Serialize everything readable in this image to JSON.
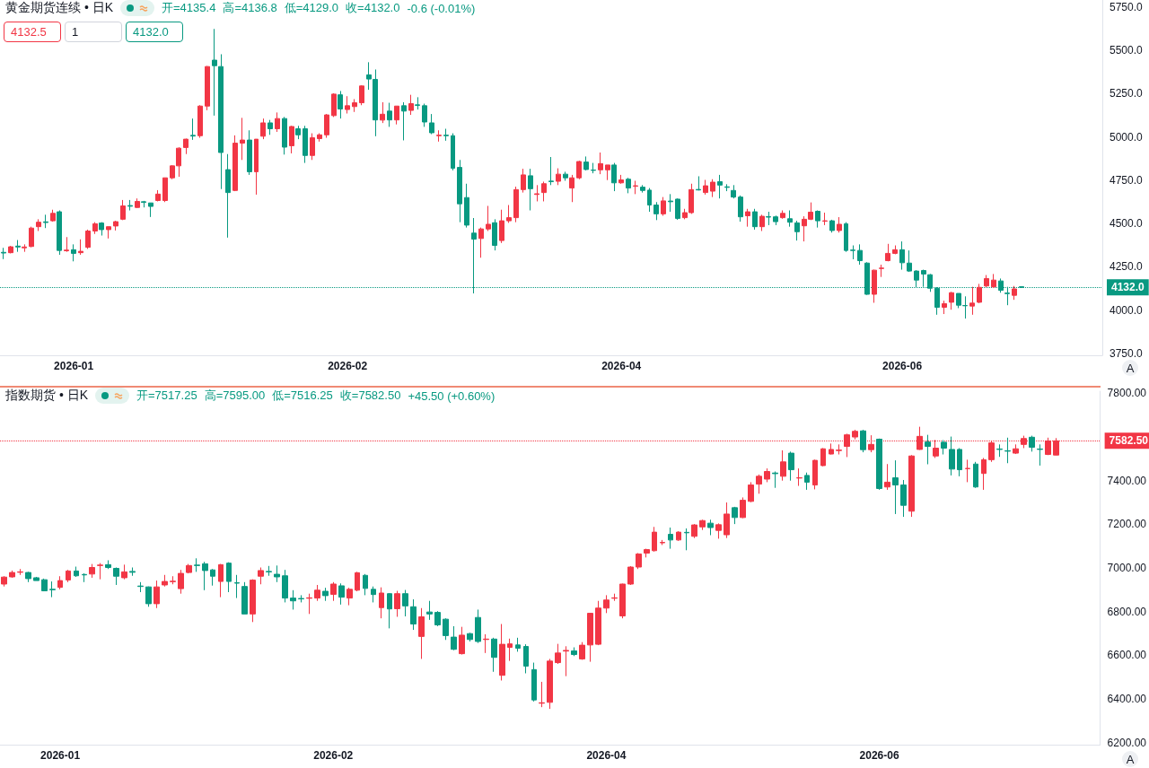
{
  "chart_data": [
    {
      "type": "candlestick",
      "title": "黄金期货连续 • 日K",
      "annotations": [
        "开=4135.4",
        "高=4136.8",
        "低=4129.0",
        "收=4132.0",
        "-0.6 (-0.01%)",
        "4132.5",
        "1",
        "4132.0",
        "A"
      ],
      "categories": [
        null,
        null,
        null,
        null,
        null,
        null,
        null,
        null,
        null,
        null,
        "2026-01",
        null,
        null,
        null,
        null,
        null,
        null,
        null,
        null,
        null,
        null,
        null,
        null,
        null,
        null,
        null,
        null,
        null,
        null,
        null,
        null,
        null,
        null,
        null,
        null,
        null,
        null,
        null,
        null,
        null,
        null,
        null,
        null,
        null,
        null,
        null,
        null,
        null,
        null,
        "2026-02",
        null,
        null,
        null,
        null,
        null,
        null,
        null,
        null,
        null,
        null,
        null,
        null,
        null,
        null,
        null,
        null,
        null,
        null,
        null,
        null,
        null,
        null,
        null,
        null,
        null,
        null,
        null,
        null,
        null,
        null,
        null,
        null,
        null,
        null,
        null,
        null,
        null,
        null,
        "2026-04",
        null,
        null,
        null,
        null,
        null,
        null,
        null,
        null,
        null,
        null,
        null,
        null,
        null,
        null,
        null,
        null,
        null,
        null,
        null,
        null,
        null,
        null,
        null,
        null,
        null,
        null,
        null,
        null,
        null,
        null,
        null,
        null,
        null,
        null,
        null,
        null,
        null,
        null,
        null,
        "2026-06",
        null,
        null,
        null,
        null,
        null,
        null,
        null,
        null,
        null,
        null,
        null,
        null,
        null,
        null,
        null,
        null,
        null,
        null,
        null,
        null,
        null,
        null,
        null,
        null,
        null,
        null,
        null,
        null
      ],
      "ohlc": [
        [
          4334,
          4360,
          4295,
          4330
        ],
        [
          4332,
          4371,
          4328,
          4366
        ],
        [
          4370,
          4405,
          4337,
          4365
        ],
        [
          4360,
          4380,
          4337,
          4365
        ],
        [
          4368,
          4482,
          4363,
          4474
        ],
        [
          4482,
          4525,
          4457,
          4508
        ],
        [
          4510,
          4551,
          4474,
          4506
        ],
        [
          4516,
          4580,
          4511,
          4559
        ],
        [
          4568,
          4576,
          4320,
          4345
        ],
        [
          4343,
          4422,
          4337,
          4347
        ],
        [
          4349,
          4380,
          4282,
          4328
        ],
        [
          4332,
          4409,
          4320,
          4340
        ],
        [
          4363,
          4465,
          4354,
          4457
        ],
        [
          4457,
          4508,
          4440,
          4499
        ],
        [
          4503,
          4508,
          4431,
          4465
        ],
        [
          4465,
          4482,
          4414,
          4482
        ],
        [
          4486,
          4516,
          4460,
          4511
        ],
        [
          4525,
          4636,
          4520,
          4602
        ],
        [
          4604,
          4636,
          4576,
          4600
        ],
        [
          4593,
          4645,
          4590,
          4628
        ],
        [
          4626,
          4631,
          4593,
          4622
        ],
        [
          4619,
          4620,
          4538,
          4599
        ],
        [
          4633,
          4693,
          4628,
          4670
        ],
        [
          4633,
          4764,
          4624,
          4764
        ],
        [
          4764,
          4836,
          4756,
          4833
        ],
        [
          4833,
          4940,
          4770,
          4935
        ],
        [
          4939,
          4990,
          4901,
          4987
        ],
        [
          5009,
          5106,
          4983,
          5005
        ],
        [
          5007,
          5183,
          4995,
          5178
        ],
        [
          5178,
          5409,
          5154,
          5406
        ],
        [
          5443,
          5623,
          5123,
          5411
        ],
        [
          5406,
          5477,
          4699,
          4910
        ],
        [
          4811,
          4901,
          4419,
          4679
        ],
        [
          4691,
          5009,
          4687,
          4964
        ],
        [
          4964,
          5110,
          4867,
          4982
        ],
        [
          4982,
          5038,
          4781,
          4799
        ],
        [
          4799,
          4987,
          4667,
          4987
        ],
        [
          5004,
          5106,
          4987,
          5081
        ],
        [
          5081,
          5098,
          5012,
          5047
        ],
        [
          5047,
          5141,
          5029,
          5106
        ],
        [
          5106,
          5115,
          4898,
          4941
        ],
        [
          4949,
          5064,
          4905,
          5060
        ],
        [
          5047,
          5064,
          4987,
          5012
        ],
        [
          5047,
          5064,
          4850,
          4893
        ],
        [
          4893,
          5021,
          4867,
          4995
        ],
        [
          4990,
          5021,
          4973,
          5012
        ],
        [
          5012,
          5132,
          4995,
          5127
        ],
        [
          5123,
          5252,
          5115,
          5247
        ],
        [
          5243,
          5265,
          5106,
          5161
        ],
        [
          5158,
          5235,
          5135,
          5180
        ],
        [
          5175,
          5218,
          5144,
          5197
        ],
        [
          5197,
          5298,
          5183,
          5294
        ],
        [
          5358,
          5431,
          5272,
          5334
        ],
        [
          5332,
          5389,
          5004,
          5098
        ],
        [
          5097,
          5200,
          5080,
          5131
        ],
        [
          5149,
          5197,
          5058,
          5098
        ],
        [
          5098,
          5178,
          5072,
          5178
        ],
        [
          5180,
          5200,
          4980,
          5149
        ],
        [
          5153,
          5243,
          5127,
          5192
        ],
        [
          5185,
          5229,
          5158,
          5182
        ],
        [
          5180,
          5192,
          5058,
          5086
        ],
        [
          5081,
          5132,
          5016,
          5024
        ],
        [
          5007,
          5038,
          4973,
          5010
        ],
        [
          5010,
          5047,
          4978,
          5007
        ],
        [
          5007,
          5021,
          4807,
          4819
        ],
        [
          4824,
          4867,
          4508,
          4614
        ],
        [
          4650,
          4730,
          4477,
          4491
        ],
        [
          4445,
          4532,
          4097,
          4410
        ],
        [
          4414,
          4477,
          4303,
          4469
        ],
        [
          4469,
          4602,
          4457,
          4496
        ],
        [
          4505,
          4525,
          4345,
          4374
        ],
        [
          4402,
          4580,
          4388,
          4516
        ],
        [
          4516,
          4607,
          4504,
          4534
        ],
        [
          4534,
          4713,
          4508,
          4696
        ],
        [
          4696,
          4816,
          4679,
          4781
        ],
        [
          4776,
          4816,
          4576,
          4701
        ],
        [
          4668,
          4722,
          4628,
          4672
        ],
        [
          4679,
          4742,
          4628,
          4730
        ],
        [
          4745,
          4884,
          4722,
          4742
        ],
        [
          4744,
          4819,
          4722,
          4785
        ],
        [
          4785,
          4799,
          4747,
          4764
        ],
        [
          4705,
          4781,
          4624,
          4764
        ],
        [
          4764,
          4862,
          4756,
          4858
        ],
        [
          4855,
          4887,
          4807,
          4812
        ],
        [
          4809,
          4850,
          4790,
          4807
        ],
        [
          4810,
          4910,
          4785,
          4846
        ],
        [
          4810,
          4838,
          4751,
          4838
        ],
        [
          4838,
          4850,
          4687,
          4735
        ],
        [
          4735,
          4781,
          4730,
          4752
        ],
        [
          4756,
          4764,
          4675,
          4705
        ],
        [
          4716,
          4747,
          4670,
          4718
        ],
        [
          4710,
          4722,
          4679,
          4691
        ],
        [
          4693,
          4705,
          4568,
          4607
        ],
        [
          4607,
          4624,
          4520,
          4556
        ],
        [
          4556,
          4653,
          4545,
          4631
        ],
        [
          4630,
          4670,
          4568,
          4626
        ],
        [
          4641,
          4645,
          4522,
          4530
        ],
        [
          4534,
          4585,
          4525,
          4563
        ],
        [
          4563,
          4730,
          4556,
          4696
        ],
        [
          4697,
          4773,
          4691,
          4694
        ],
        [
          4679,
          4752,
          4667,
          4718
        ],
        [
          4687,
          4756,
          4653,
          4739
        ],
        [
          4742,
          4781,
          4645,
          4722
        ],
        [
          4712,
          4727,
          4687,
          4709
        ],
        [
          4691,
          4722,
          4645,
          4653
        ],
        [
          4653,
          4662,
          4511,
          4539
        ],
        [
          4545,
          4585,
          4482,
          4568
        ],
        [
          4568,
          4585,
          4465,
          4482
        ],
        [
          4482,
          4551,
          4457,
          4542
        ],
        [
          4540,
          4568,
          4491,
          4537
        ],
        [
          4539,
          4546,
          4491,
          4511
        ],
        [
          4534,
          4576,
          4528,
          4559
        ],
        [
          4528,
          4576,
          4482,
          4508
        ],
        [
          4504,
          4516,
          4402,
          4453
        ],
        [
          4487,
          4542,
          4397,
          4525
        ],
        [
          4525,
          4622,
          4520,
          4566
        ],
        [
          4571,
          4576,
          4477,
          4516
        ],
        [
          4514,
          4563,
          4491,
          4516
        ],
        [
          4516,
          4522,
          4448,
          4460
        ],
        [
          4460,
          4537,
          4448,
          4496
        ],
        [
          4499,
          4508,
          4337,
          4345
        ],
        [
          4347,
          4374,
          4294,
          4345
        ],
        [
          4345,
          4380,
          4263,
          4286
        ],
        [
          4272,
          4277,
          4089,
          4092
        ],
        [
          4092,
          4234,
          4043,
          4231
        ],
        [
          4241,
          4263,
          4192,
          4243
        ],
        [
          4286,
          4383,
          4282,
          4328
        ],
        [
          4328,
          4374,
          4323,
          4349
        ],
        [
          4349,
          4397,
          4234,
          4274
        ],
        [
          4272,
          4345,
          4221,
          4226
        ],
        [
          4226,
          4231,
          4132,
          4174
        ],
        [
          4229,
          4234,
          4135,
          4209
        ],
        [
          4205,
          4209,
          4106,
          4127
        ],
        [
          4127,
          4132,
          3974,
          4017
        ],
        [
          4017,
          4055,
          3978,
          4038
        ],
        [
          4046,
          4106,
          4003,
          4101
        ],
        [
          4097,
          4097,
          4012,
          4029
        ],
        [
          4027,
          4080,
          3952,
          4026
        ],
        [
          4024,
          4135,
          3974,
          4041
        ],
        [
          4046,
          4152,
          4041,
          4132
        ],
        [
          4140,
          4203,
          4132,
          4183
        ],
        [
          4135,
          4209,
          4128,
          4174
        ],
        [
          4169,
          4183,
          4101,
          4115
        ],
        [
          4099,
          4135,
          4029,
          4096
        ],
        [
          4086,
          4140,
          4060,
          4123
        ],
        [
          4135.4,
          4136.8,
          4129.0,
          4132.0
        ],
        null,
        null,
        null,
        null,
        null,
        null,
        null,
        null,
        null,
        null,
        null
      ],
      "ylim": [
        3740,
        5790
      ],
      "yticks": [
        {
          "value": 3750,
          "label": "3750.0"
        },
        {
          "value": 4000,
          "label": "4000.0"
        },
        {
          "value": 4250,
          "label": "4250.0"
        },
        {
          "value": 4500,
          "label": "4500.0"
        },
        {
          "value": 4750,
          "label": "4750.0"
        },
        {
          "value": 5000,
          "label": "5000.0"
        },
        {
          "value": 5250,
          "label": "5250.0"
        },
        {
          "value": 5500,
          "label": "5500.0"
        },
        {
          "value": 5750,
          "label": "5750.0"
        }
      ],
      "ref_lines": [
        {
          "axis": "y",
          "value": 4132.0,
          "label": "4132.0",
          "color": "#089981",
          "line_style": "dotted"
        }
      ]
    },
    {
      "type": "candlestick",
      "title": "指数期货 • 日K",
      "annotations": [
        "开=7517.25",
        "高=7595.00",
        "低=7516.25",
        "收=7582.50",
        "+45.50 (+0.60%)",
        "A"
      ],
      "categories": [
        null,
        null,
        null,
        null,
        null,
        null,
        null,
        "2026-01",
        null,
        null,
        null,
        null,
        null,
        null,
        null,
        null,
        null,
        null,
        null,
        null,
        null,
        null,
        null,
        null,
        null,
        null,
        null,
        null,
        null,
        null,
        null,
        null,
        null,
        null,
        null,
        null,
        null,
        null,
        null,
        null,
        null,
        "2026-02",
        null,
        null,
        null,
        null,
        null,
        null,
        null,
        null,
        null,
        null,
        null,
        null,
        null,
        null,
        null,
        null,
        null,
        null,
        null,
        null,
        null,
        null,
        null,
        null,
        null,
        null,
        null,
        null,
        null,
        null,
        null,
        null,
        null,
        "2026-04",
        null,
        null,
        null,
        null,
        null,
        null,
        null,
        null,
        null,
        null,
        null,
        null,
        null,
        null,
        null,
        null,
        null,
        null,
        null,
        null,
        null,
        null,
        null,
        null,
        null,
        null,
        null,
        null,
        null,
        null,
        null,
        null,
        null,
        "2026-06",
        null,
        null,
        null,
        null,
        null,
        null,
        null,
        null,
        null,
        null,
        null,
        null,
        null,
        null,
        null,
        null,
        null,
        null,
        null,
        null,
        null,
        null,
        null,
        null,
        null,
        null,
        null
      ],
      "ohlc": [
        [
          6926,
          6962,
          6915,
          6958
        ],
        [
          6959,
          6988,
          6955,
          6979
        ],
        [
          6980,
          6995,
          6968,
          6982
        ],
        [
          6979,
          6982,
          6935,
          6951
        ],
        [
          6955,
          6959,
          6942,
          6942
        ],
        [
          6946,
          6951,
          6893,
          6895
        ],
        [
          6902,
          6938,
          6866,
          6900
        ],
        [
          6911,
          6962,
          6902,
          6942
        ],
        [
          6945,
          6991,
          6935,
          6986
        ],
        [
          6986,
          7006,
          6959,
          6964
        ],
        [
          6970,
          6975,
          6935,
          6968
        ],
        [
          6972,
          7018,
          6955,
          7002
        ],
        [
          7011,
          7022,
          6948,
          7013
        ],
        [
          7015,
          7035,
          6995,
          7002
        ],
        [
          6998,
          7002,
          6922,
          6962
        ],
        [
          6955,
          7015,
          6948,
          6982
        ],
        [
          6984,
          7002,
          6964,
          6980
        ],
        [
          6917,
          6935,
          6889,
          6915
        ],
        [
          6913,
          6915,
          6822,
          6836
        ],
        [
          6836,
          6942,
          6816,
          6913
        ],
        [
          6922,
          6968,
          6915,
          6938
        ],
        [
          6937,
          6962,
          6925,
          6939
        ],
        [
          6905,
          6991,
          6882,
          6975
        ],
        [
          6979,
          7018,
          6975,
          7011
        ],
        [
          7013,
          7044,
          6982,
          7011
        ],
        [
          7019,
          7028,
          6898,
          6988
        ],
        [
          6991,
          6995,
          6919,
          6962
        ],
        [
          6938,
          7018,
          6866,
          7015
        ],
        [
          7022,
          7026,
          6889,
          6938
        ],
        [
          6932,
          6968,
          6862,
          6930
        ],
        [
          6915,
          6935,
          6789,
          6789
        ],
        [
          6789,
          6948,
          6752,
          6944
        ],
        [
          6962,
          7002,
          6925,
          6988
        ],
        [
          6984,
          7009,
          6964,
          6982
        ],
        [
          6971,
          7011,
          6935,
          6959
        ],
        [
          6964,
          6991,
          6842,
          6862
        ],
        [
          6862,
          6898,
          6809,
          6849
        ],
        [
          6860,
          6875,
          6842,
          6858
        ],
        [
          6861,
          6882,
          6789,
          6863
        ],
        [
          6862,
          6922,
          6849,
          6898
        ],
        [
          6893,
          6909,
          6849,
          6873
        ],
        [
          6879,
          6935,
          6849,
          6926
        ],
        [
          6918,
          6929,
          6832,
          6866
        ],
        [
          6862,
          6909,
          6829,
          6902
        ],
        [
          6898,
          6982,
          6893,
          6978
        ],
        [
          6966,
          6972,
          6875,
          6906
        ],
        [
          6902,
          6915,
          6842,
          6878
        ],
        [
          6818,
          6911,
          6769,
          6885
        ],
        [
          6882,
          6885,
          6723,
          6812
        ],
        [
          6813,
          6895,
          6776,
          6882
        ],
        [
          6882,
          6899,
          6778,
          6826
        ],
        [
          6822,
          6856,
          6716,
          6743
        ],
        [
          6686,
          6816,
          6583,
          6776
        ],
        [
          6798,
          6849,
          6762,
          6789
        ],
        [
          6796,
          6802,
          6733,
          6739
        ],
        [
          6765,
          6769,
          6670,
          6690
        ],
        [
          6683,
          6733,
          6623,
          6627
        ],
        [
          6607,
          6730,
          6603,
          6692
        ],
        [
          6699,
          6703,
          6663,
          6672
        ],
        [
          6773,
          6809,
          6656,
          6663
        ],
        [
          6672,
          6696,
          6610,
          6674
        ],
        [
          6674,
          6680,
          6524,
          6590
        ],
        [
          6508,
          6743,
          6484,
          6650
        ],
        [
          6636,
          6676,
          6574,
          6652
        ],
        [
          6647,
          6680,
          6616,
          6632
        ],
        [
          6640,
          6650,
          6517,
          6550
        ],
        [
          6534,
          6566,
          6388,
          6395
        ],
        [
          6380,
          6478,
          6362,
          6382
        ],
        [
          6384,
          6583,
          6354,
          6573
        ],
        [
          6566,
          6652,
          6560,
          6610
        ],
        [
          6619,
          6641,
          6504,
          6622
        ],
        [
          6620,
          6636,
          6596,
          6603
        ],
        [
          6583,
          6660,
          6579,
          6646
        ],
        [
          6647,
          6794,
          6570,
          6792
        ],
        [
          6650,
          6849,
          6646,
          6816
        ],
        [
          6816,
          6875,
          6793,
          6853
        ],
        [
          6861,
          6882,
          6849,
          6863
        ],
        [
          6780,
          6928,
          6769,
          6926
        ],
        [
          6926,
          7008,
          6922,
          7004
        ],
        [
          7004,
          7068,
          6995,
          7064
        ],
        [
          7068,
          7088,
          7048,
          7084
        ],
        [
          7079,
          7188,
          7075,
          7164
        ],
        [
          7115,
          7128,
          7105,
          7117
        ],
        [
          7154,
          7185,
          7088,
          7128
        ],
        [
          7128,
          7168,
          7124,
          7164
        ],
        [
          7163,
          7181,
          7081,
          7161
        ],
        [
          7145,
          7201,
          7137,
          7197
        ],
        [
          7188,
          7221,
          7174,
          7217
        ],
        [
          7205,
          7221,
          7150,
          7185
        ],
        [
          7172,
          7204,
          7134,
          7198
        ],
        [
          7152,
          7300,
          7137,
          7247
        ],
        [
          7276,
          7280,
          7201,
          7231
        ],
        [
          7231,
          7323,
          7228,
          7310
        ],
        [
          7305,
          7393,
          7301,
          7380
        ],
        [
          7384,
          7428,
          7340,
          7420
        ],
        [
          7407,
          7456,
          7393,
          7442
        ],
        [
          7435,
          7442,
          7367,
          7432
        ],
        [
          7420,
          7539,
          7400,
          7486
        ],
        [
          7526,
          7533,
          7400,
          7450
        ],
        [
          7412,
          7456,
          7376,
          7413
        ],
        [
          7424,
          7437,
          7358,
          7393
        ],
        [
          7380,
          7496,
          7360,
          7493
        ],
        [
          7469,
          7549,
          7466,
          7546
        ],
        [
          7522,
          7570,
          7520,
          7543
        ],
        [
          7538,
          7566,
          7520,
          7540
        ],
        [
          7557,
          7615,
          7508,
          7610
        ],
        [
          7600,
          7633,
          7589,
          7626
        ],
        [
          7628,
          7633,
          7530,
          7542
        ],
        [
          7542,
          7608,
          7530,
          7566
        ],
        [
          7590,
          7593,
          7358,
          7364
        ],
        [
          7371,
          7476,
          7358,
          7393
        ],
        [
          7413,
          7493,
          7247,
          7380
        ],
        [
          7380,
          7403,
          7234,
          7287
        ],
        [
          7260,
          7517,
          7234,
          7513
        ],
        [
          7543,
          7647,
          7541,
          7603
        ],
        [
          7577,
          7610,
          7475,
          7557
        ],
        [
          7513,
          7586,
          7504,
          7549
        ],
        [
          7576,
          7586,
          7520,
          7549
        ],
        [
          7543,
          7602,
          7424,
          7453
        ],
        [
          7543,
          7549,
          7420,
          7450
        ],
        [
          7455,
          7496,
          7393,
          7456
        ],
        [
          7476,
          7486,
          7367,
          7371
        ],
        [
          7433,
          7504,
          7358,
          7496
        ],
        [
          7496,
          7580,
          7486,
          7573
        ],
        [
          7545,
          7566,
          7509,
          7543
        ],
        [
          7537,
          7597,
          7480,
          7535
        ],
        [
          7526,
          7566,
          7522,
          7546
        ],
        [
          7566,
          7606,
          7549,
          7593
        ],
        [
          7599,
          7606,
          7533,
          7553
        ],
        [
          7545,
          7566,
          7469,
          7543
        ],
        [
          7520,
          7597,
          7517,
          7582
        ],
        [
          7517.25,
          7595.0,
          7516.25,
          7582.5
        ],
        null,
        null,
        null,
        null,
        null
      ],
      "ylim": [
        6190,
        7810
      ],
      "yticks": [
        {
          "value": 6200,
          "label": "6200.00"
        },
        {
          "value": 6400,
          "label": "6400.00"
        },
        {
          "value": 6600,
          "label": "6600.00"
        },
        {
          "value": 6800,
          "label": "6800.00"
        },
        {
          "value": 7000,
          "label": "7000.00"
        },
        {
          "value": 7200,
          "label": "7200.00"
        },
        {
          "value": 7400,
          "label": "7400.00"
        },
        {
          "value": 7800,
          "label": "7800.00"
        }
      ],
      "ref_lines": [
        {
          "axis": "y",
          "value": 7582.5,
          "label": "7582.50",
          "color": "#f23645",
          "line_style": "dotted"
        }
      ]
    }
  ]
}
